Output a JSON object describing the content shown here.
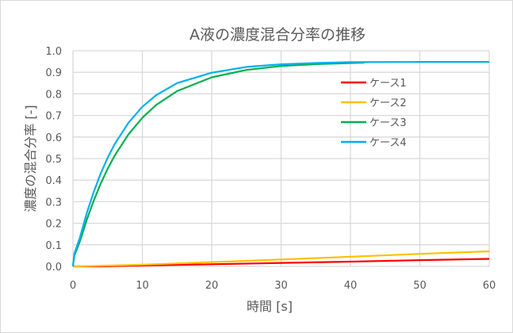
{
  "chart_data": {
    "type": "line",
    "title": "A液の濃度混合分率の推移",
    "xlabel": "時間 [s]",
    "ylabel": "濃度の混合分率 [-]",
    "xlim": [
      0,
      60
    ],
    "ylim": [
      0,
      1.0
    ],
    "xticks": [
      "0",
      "10",
      "20",
      "30",
      "40",
      "50",
      "60"
    ],
    "yticks": [
      "0.0",
      "0.1",
      "0.2",
      "0.3",
      "0.4",
      "0.5",
      "0.6",
      "0.7",
      "0.8",
      "0.9",
      "1.0"
    ],
    "grid": true,
    "legend_position": "upper-right inside",
    "series": [
      {
        "name": "ケース1",
        "color": "#FF0000",
        "x": [
          0,
          4,
          10,
          20,
          30,
          40,
          50,
          60
        ],
        "y": [
          0,
          0,
          0.004,
          0.01,
          0.016,
          0.022,
          0.029,
          0.035
        ]
      },
      {
        "name": "ケース2",
        "color": "#FFC000",
        "x": [
          0,
          2,
          10,
          20,
          30,
          40,
          50,
          60
        ],
        "y": [
          0,
          0.001,
          0.008,
          0.02,
          0.032,
          0.045,
          0.058,
          0.07
        ]
      },
      {
        "name": "ケース3",
        "color": "#00B050",
        "x": [
          0,
          0.2,
          1,
          2,
          3,
          4,
          5,
          6,
          8,
          10,
          12,
          15,
          20,
          25,
          30,
          35,
          40,
          42
        ],
        "y": [
          0,
          0.05,
          0.116,
          0.217,
          0.306,
          0.384,
          0.453,
          0.513,
          0.612,
          0.689,
          0.749,
          0.813,
          0.877,
          0.911,
          0.929,
          0.938,
          0.943,
          0.945
        ]
      },
      {
        "name": "ケース4",
        "color": "#00B0F0",
        "x": [
          0,
          0.2,
          1,
          2,
          3,
          4,
          5,
          6,
          8,
          10,
          12,
          15,
          20,
          25,
          30,
          35,
          40,
          50,
          60
        ],
        "y": [
          0,
          0.06,
          0.134,
          0.248,
          0.346,
          0.431,
          0.504,
          0.566,
          0.666,
          0.74,
          0.794,
          0.85,
          0.898,
          0.925,
          0.937,
          0.943,
          0.947,
          0.948,
          0.948
        ]
      }
    ]
  }
}
